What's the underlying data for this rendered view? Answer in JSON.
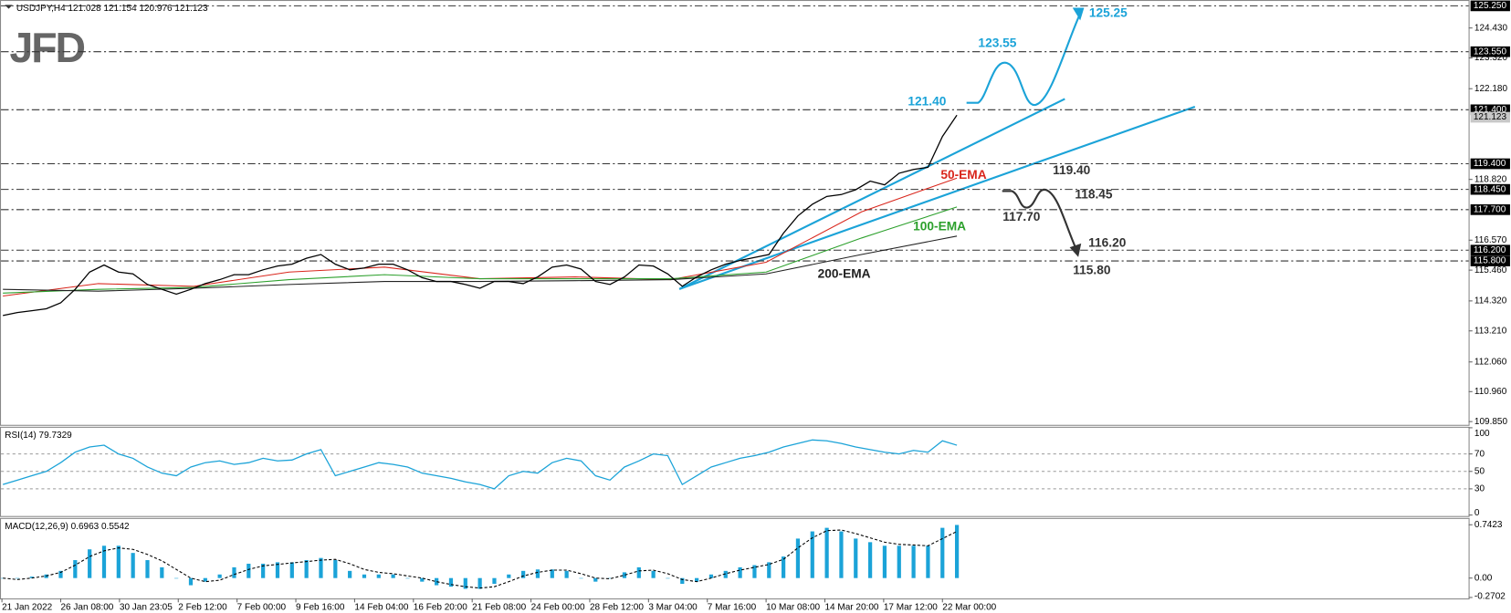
{
  "chart_data": [
    {
      "type": "line",
      "title": "USDJPY,H4  121.028 121.154 120.976 121.123",
      "logo": "JFD",
      "color": "#000000",
      "values": [
        113.78,
        113.89,
        113.96,
        114.03,
        114.25,
        114.75,
        115.39,
        115.65,
        115.39,
        115.32,
        114.93,
        114.75,
        114.57,
        114.75,
        114.96,
        115.11,
        115.29,
        115.29,
        115.47,
        115.61,
        115.68,
        115.9,
        116.04,
        115.68,
        115.47,
        115.54,
        115.68,
        115.68,
        115.47,
        115.18,
        115.04,
        115.04,
        114.93,
        114.79,
        115.04,
        115.04,
        114.96,
        115.21,
        115.57,
        115.65,
        115.5,
        115.04,
        114.93,
        115.21,
        115.65,
        115.61,
        115.32,
        114.86,
        115.21,
        115.47,
        115.68,
        115.82,
        115.93,
        116.04,
        116.83,
        117.47,
        117.9,
        118.19,
        118.26,
        118.44,
        118.76,
        118.62,
        119.05,
        119.19,
        119.27,
        120.41,
        121.2
      ],
      "series": [
        {
          "name": "50-EMA",
          "color": "#d9261c",
          "values": [
            114.5,
            114.96,
            114.86,
            115.39,
            115.57,
            115.14,
            115.21,
            115.11,
            115.75,
            117.62,
            118.87
          ]
        },
        {
          "name": "100-EMA",
          "color": "#2ca02c",
          "values": [
            114.61,
            114.75,
            114.82,
            115.11,
            115.29,
            115.14,
            115.14,
            115.14,
            115.39,
            116.65,
            117.8
          ]
        },
        {
          "name": "200-EMA",
          "color": "#222222",
          "values": [
            114.75,
            114.68,
            114.79,
            114.93,
            115.04,
            115.04,
            115.07,
            115.11,
            115.32,
            116.04,
            116.72
          ]
        }
      ],
      "x_labels": [
        "21 Jan 2022",
        "26 Jan 08:00",
        "30 Jan 23:05",
        "2 Feb 12:00",
        "7 Feb 00:00",
        "9 Feb 16:00",
        "14 Feb 04:00",
        "16 Feb 20:00",
        "21 Feb 08:00",
        "24 Feb 00:00",
        "28 Feb 12:00",
        "3 Mar 04:00",
        "7 Mar 16:00",
        "10 Mar 08:00",
        "14 Mar 20:00",
        "17 Mar 12:00",
        "22 Mar 00:00"
      ],
      "ylim": [
        109.73,
        125.43
      ],
      "yticks": [
        {
          "value": 124.43,
          "label": "124.430"
        },
        {
          "value": 123.32,
          "label": "123.320"
        },
        {
          "value": 122.18,
          "label": "122.180"
        },
        {
          "value": 118.82,
          "label": "118.820"
        },
        {
          "value": 116.57,
          "label": "116.570"
        },
        {
          "value": 115.46,
          "label": "115.460"
        },
        {
          "value": 114.32,
          "label": "114.320"
        },
        {
          "value": 113.21,
          "label": "113.210"
        },
        {
          "value": 112.06,
          "label": "112.060"
        },
        {
          "value": 110.96,
          "label": "110.960"
        },
        {
          "value": 109.85,
          "label": "109.850"
        }
      ],
      "levels": [
        {
          "value": 125.25,
          "label": "125.250"
        },
        {
          "value": 123.55,
          "label": "123.550"
        },
        {
          "value": 121.4,
          "label": "121.400"
        },
        {
          "value": 119.4,
          "label": "119.400"
        },
        {
          "value": 118.45,
          "label": "118.450"
        },
        {
          "value": 117.7,
          "label": "117.700"
        },
        {
          "value": 116.2,
          "label": "116.200"
        },
        {
          "value": 115.8,
          "label": "115.800"
        }
      ],
      "last_price": {
        "value": 121.123,
        "label": "121.123"
      },
      "annotations": [
        {
          "text": "125.25",
          "color": "#1ba3d8"
        },
        {
          "text": "123.55",
          "color": "#1ba3d8"
        },
        {
          "text": "121.40",
          "color": "#1ba3d8"
        },
        {
          "text": "119.40",
          "color": "#333333"
        },
        {
          "text": "118.45",
          "color": "#333333"
        },
        {
          "text": "117.70",
          "color": "#333333"
        },
        {
          "text": "116.20",
          "color": "#333333"
        },
        {
          "text": "115.80",
          "color": "#333333"
        }
      ]
    },
    {
      "type": "line",
      "title": "RSI(14) 79.7329",
      "color": "#1ba3d8",
      "values": [
        35,
        40,
        45,
        50,
        60,
        72,
        78,
        80,
        70,
        65,
        55,
        48,
        45,
        55,
        60,
        62,
        58,
        60,
        65,
        62,
        63,
        70,
        75,
        45,
        50,
        55,
        60,
        58,
        55,
        48,
        45,
        42,
        38,
        35,
        30,
        45,
        50,
        48,
        60,
        65,
        62,
        45,
        40,
        55,
        62,
        70,
        68,
        35,
        45,
        55,
        60,
        65,
        68,
        72,
        78,
        82,
        86,
        85,
        82,
        78,
        75,
        72,
        70,
        74,
        72,
        85,
        80
      ],
      "ylim": [
        0,
        100
      ],
      "yticks": [
        100,
        70,
        50,
        30,
        0
      ],
      "levels": [
        70,
        50,
        30
      ]
    },
    {
      "type": "bar",
      "title": "MACD(12,26,9) 0.6963 0.5542",
      "color": "#1ba3d8",
      "values": [
        0,
        0,
        0.02,
        0.05,
        0.1,
        0.25,
        0.4,
        0.45,
        0.45,
        0.35,
        0.25,
        0.15,
        0,
        -0.1,
        -0.05,
        0.05,
        0.15,
        0.2,
        0.2,
        0.22,
        0.22,
        0.25,
        0.28,
        0.25,
        0.1,
        0.05,
        0.05,
        0.05,
        0,
        -0.05,
        -0.1,
        -0.12,
        -0.15,
        -0.15,
        -0.08,
        0.05,
        0.1,
        0.12,
        0.12,
        0.1,
        0,
        -0.05,
        0,
        0.08,
        0.15,
        0.1,
        0,
        -0.08,
        -0.05,
        0.05,
        0.1,
        0.15,
        0.18,
        0.22,
        0.3,
        0.55,
        0.65,
        0.7,
        0.65,
        0.55,
        0.5,
        0.45,
        0.45,
        0.45,
        0.45,
        0.7,
        0.74
      ],
      "signal": {
        "color": "#000000",
        "values": [
          0,
          -0.02,
          0,
          0.03,
          0.08,
          0.18,
          0.3,
          0.38,
          0.42,
          0.4,
          0.33,
          0.24,
          0.12,
          0,
          -0.05,
          -0.03,
          0.05,
          0.12,
          0.17,
          0.19,
          0.21,
          0.23,
          0.25,
          0.26,
          0.2,
          0.12,
          0.08,
          0.06,
          0.03,
          0,
          -0.05,
          -0.09,
          -0.12,
          -0.14,
          -0.12,
          -0.05,
          0.03,
          0.08,
          0.11,
          0.11,
          0.06,
          0,
          -0.01,
          0.04,
          0.1,
          0.11,
          0.06,
          -0.02,
          -0.05,
          0,
          0.06,
          0.11,
          0.15,
          0.19,
          0.26,
          0.42,
          0.56,
          0.66,
          0.67,
          0.62,
          0.56,
          0.5,
          0.47,
          0.46,
          0.45,
          0.55,
          0.65
        ]
      },
      "ylim": [
        -0.284,
        0.824
      ],
      "yticks": [
        0.7423,
        {
          "value": 0,
          "label": "0.00"
        },
        -0.2702
      ]
    }
  ]
}
